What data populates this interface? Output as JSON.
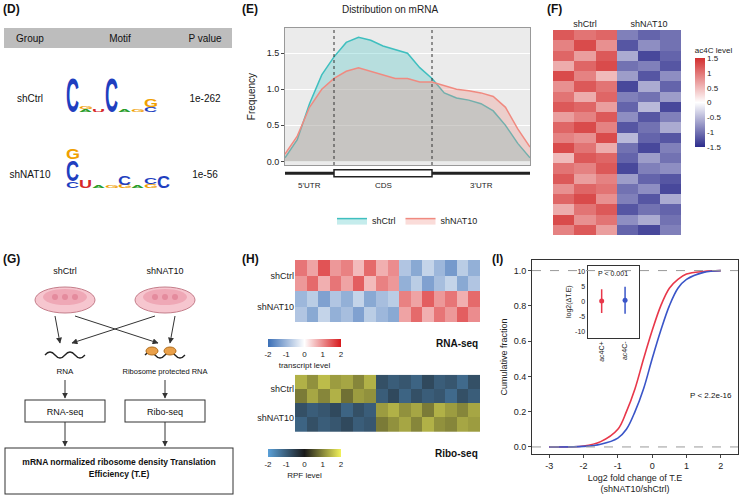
{
  "panels": {
    "D": "(D)",
    "E": "(E)",
    "F": "(F)",
    "G": "(G)",
    "H": "(H)",
    "I": "(I)"
  },
  "motif_table": {
    "header": [
      "Group",
      "Motif",
      "P value"
    ],
    "rows": [
      {
        "group": "shCtrl",
        "p_value": "1e-262",
        "motif": [
          [
            {
              "letter": "C",
              "bits": 1.6
            }
          ],
          [
            {
              "letter": "A",
              "bits": 0.12
            },
            {
              "letter": "G",
              "bits": 0.1
            }
          ],
          [
            {
              "letter": "U",
              "bits": 0.1
            }
          ],
          [
            {
              "letter": "C",
              "bits": 1.6
            }
          ],
          [
            {
              "letter": "A",
              "bits": 0.1
            }
          ],
          [
            {
              "letter": "G",
              "bits": 0.12
            }
          ],
          [
            {
              "letter": "C",
              "bits": 0.25
            },
            {
              "letter": "G",
              "bits": 0.35
            }
          ]
        ]
      },
      {
        "group": "shNAT10",
        "p_value": "1e-56",
        "motif": [
          [
            {
              "letter": "C",
              "bits": 0.3
            },
            {
              "letter": "C",
              "bits": 1.0
            },
            {
              "letter": "G",
              "bits": 0.5
            }
          ],
          [
            {
              "letter": "U",
              "bits": 0.35
            }
          ],
          [
            {
              "letter": "A",
              "bits": 0.1
            }
          ],
          [
            {
              "letter": "G",
              "bits": 0.12
            }
          ],
          [
            {
              "letter": "G",
              "bits": 0.15
            },
            {
              "letter": "C",
              "bits": 0.45
            }
          ],
          [
            {
              "letter": "A",
              "bits": 0.1
            }
          ],
          [
            {
              "letter": "G",
              "bits": 0.2
            },
            {
              "letter": "C",
              "bits": 0.3
            }
          ],
          [
            {
              "letter": "C",
              "bits": 0.55
            }
          ]
        ]
      }
    ]
  },
  "diagram": {
    "groups": [
      "shCtrl",
      "shNAT10"
    ],
    "rna": "RNA",
    "rpf": "Ribosome protected RNA",
    "assays": [
      "RNA-seq",
      "Ribo-seq"
    ],
    "result": "mRNA normalized ribosome density Translation Efficiency (T.E)"
  },
  "chart_data": [
    {
      "type": "area",
      "title": "Distribution on mRNA",
      "ylabel": "Frequency",
      "x": [
        0,
        0.05,
        0.1,
        0.15,
        0.2,
        0.25,
        0.3,
        0.35,
        0.4,
        0.45,
        0.5,
        0.55,
        0.6,
        0.65,
        0.7,
        0.75,
        0.8,
        0.85,
        0.9,
        0.95,
        1
      ],
      "series": [
        {
          "name": "shCtrl",
          "color": "#3fbfbf",
          "values": [
            0.05,
            0.3,
            0.8,
            1.2,
            1.45,
            1.65,
            1.72,
            1.68,
            1.6,
            1.55,
            1.5,
            1.3,
            1.15,
            0.95,
            0.88,
            0.85,
            0.8,
            0.7,
            0.5,
            0.25,
            0.05
          ]
        },
        {
          "name": "shNAT10",
          "color": "#f08a80",
          "values": [
            0.1,
            0.35,
            0.75,
            1.0,
            1.15,
            1.25,
            1.3,
            1.25,
            1.2,
            1.15,
            1.15,
            1.1,
            1.1,
            1.05,
            1.0,
            0.98,
            0.95,
            0.9,
            0.75,
            0.45,
            0.2
          ]
        }
      ],
      "xlim": [
        0,
        1
      ],
      "ylim": [
        -0.05,
        1.85
      ],
      "yticks": [
        {
          "value": 0,
          "label": "0.0"
        },
        {
          "value": 0.5,
          "label": "0.5"
        },
        {
          "value": 1,
          "label": "1.0"
        },
        {
          "value": 1.5,
          "label": "1.5"
        }
      ],
      "regions": [
        {
          "label": "5'UTR",
          "from": 0,
          "to": 0.2
        },
        {
          "label": "CDS",
          "from": 0.2,
          "to": 0.6
        },
        {
          "label": "3'UTR",
          "from": 0.6,
          "to": 1
        }
      ],
      "tick_labels": "y",
      "grid": true,
      "legend": "bottom"
    },
    {
      "type": "heatmap",
      "columns": [
        "shCtrl",
        "shCtrl",
        "shCtrl",
        "shNAT10",
        "shNAT10",
        "shNAT10"
      ],
      "cells": [
        [
          1.2,
          1.0,
          1.1,
          -0.9,
          -1.1,
          -1.0
        ],
        [
          0.9,
          1.3,
          0.8,
          -1.2,
          -0.8,
          -1.0
        ],
        [
          1.1,
          0.7,
          1.2,
          -0.6,
          -1.3,
          -1.1
        ],
        [
          0.6,
          1.1,
          1.3,
          -1.0,
          -0.9,
          -1.2
        ],
        [
          1.3,
          0.9,
          0.5,
          -0.7,
          -1.2,
          -0.8
        ],
        [
          0.8,
          1.2,
          1.0,
          -1.3,
          -0.6,
          -1.1
        ],
        [
          1.0,
          0.6,
          1.1,
          -0.9,
          -1.0,
          -0.7
        ],
        [
          1.2,
          1.1,
          0.7,
          -1.1,
          -0.5,
          -1.3
        ],
        [
          0.7,
          0.9,
          1.2,
          -0.8,
          -1.2,
          -0.9
        ],
        [
          1.1,
          1.3,
          0.9,
          -1.2,
          -1.0,
          -0.6
        ],
        [
          0.9,
          0.8,
          1.3,
          -0.5,
          -1.1,
          -1.2
        ],
        [
          1.3,
          1.0,
          0.6,
          -1.0,
          -1.3,
          -0.9
        ],
        [
          0.5,
          1.2,
          1.1,
          -1.1,
          -0.7,
          -1.0
        ],
        [
          1.0,
          0.9,
          1.2,
          -1.3,
          -0.9,
          -0.8
        ],
        [
          1.2,
          0.7,
          0.9,
          -0.7,
          -1.1,
          -1.2
        ],
        [
          0.8,
          1.1,
          1.0,
          -1.0,
          -0.8,
          -1.3
        ],
        [
          1.1,
          1.3,
          0.8,
          -0.9,
          -1.2,
          -0.6
        ],
        [
          0.6,
          1.0,
          1.2,
          -1.2,
          -1.0,
          -1.1
        ],
        [
          1.3,
          0.8,
          1.0,
          -0.8,
          -0.6,
          -1.0
        ],
        [
          0.9,
          1.2,
          0.7,
          -1.1,
          -1.3,
          -0.9
        ]
      ],
      "zlim": [
        -1.5,
        1.5
      ],
      "zticks": [
        -1.5,
        -1,
        -0.5,
        0,
        0.5,
        1,
        1.5
      ],
      "colorbar_title": "ac4C level",
      "colors": [
        "#2c2c8c",
        "#ffffff",
        "#d32f2f"
      ],
      "tick_labels": "x"
    },
    {
      "type": "heatmap",
      "title": "RNA-seq",
      "rows": [
        "shCtrl",
        "shCtrl",
        "shNAT10",
        "shNAT10"
      ],
      "cells": [
        [
          1.2,
          0.8,
          1.5,
          0.9,
          1.1,
          0.6,
          1.3,
          0.7,
          1.0,
          -0.8,
          -1.2,
          -0.6,
          -1.0,
          -1.4,
          -0.7,
          -1.1
        ],
        [
          0.9,
          1.3,
          0.7,
          1.2,
          0.8,
          1.4,
          0.6,
          1.1,
          0.9,
          -1.1,
          -0.7,
          -1.3,
          -0.9,
          -0.6,
          -1.2,
          -0.8
        ],
        [
          -1.0,
          -0.7,
          -1.3,
          -0.8,
          -1.1,
          -0.6,
          -1.2,
          -0.9,
          -0.7,
          1.1,
          0.8,
          1.4,
          0.9,
          1.2,
          0.7,
          1.3
        ],
        [
          -0.8,
          -1.2,
          -0.6,
          -1.1,
          -0.9,
          -1.3,
          -0.7,
          -1.0,
          -1.2,
          0.8,
          1.3,
          0.7,
          1.2,
          0.9,
          1.4,
          1.0
        ]
      ],
      "zlim": [
        -2,
        2
      ],
      "zticks": [
        -2,
        -1,
        0,
        1,
        2
      ],
      "colorbar_title": "transcript level",
      "colors": [
        "#3b6fb6",
        "#ffffff",
        "#d7191c"
      ],
      "tick_labels": "y"
    },
    {
      "type": "heatmap",
      "title": "Ribo-seq",
      "rows": [
        "shCtrl",
        "shCtrl",
        "shNAT10",
        "shNAT10"
      ],
      "cells": [
        [
          1.4,
          1.1,
          1.5,
          1.2,
          1.3,
          1.0,
          1.4,
          -0.8,
          -1.0,
          -0.9,
          -1.1,
          -0.7,
          -1.0,
          -0.9,
          -1.2,
          -0.8
        ],
        [
          0.9,
          1.3,
          1.0,
          1.4,
          0.8,
          1.2,
          1.1,
          -1.0,
          -0.7,
          -1.1,
          -0.8,
          -1.0,
          -0.9,
          -1.2,
          -0.8,
          -1.0
        ],
        [
          -0.8,
          -1.0,
          -0.9,
          -0.7,
          -1.1,
          -0.8,
          -1.0,
          1.2,
          1.4,
          1.1,
          1.3,
          0.9,
          1.4,
          1.2,
          1.0,
          1.3
        ],
        [
          -1.1,
          -0.8,
          -1.0,
          -0.9,
          -0.7,
          -1.0,
          -0.9,
          0.9,
          1.1,
          1.3,
          1.0,
          1.4,
          1.1,
          1.0,
          1.3,
          1.2
        ]
      ],
      "zlim": [
        -2,
        2
      ],
      "zticks": [
        -2,
        -1,
        0,
        1,
        2
      ],
      "colorbar_title": "RPF level",
      "colors": [
        "#5aa0d8",
        "#1a1a1a",
        "#f2f25a"
      ],
      "tick_labels": "y"
    },
    {
      "type": "line",
      "xlabel": [
        "Log2 fold change of T.E",
        "(shNAT10/shCtrl)"
      ],
      "ylabel": "Cumulative fraction",
      "x": [
        -3,
        -2,
        -1.5,
        -1,
        -0.75,
        -0.5,
        -0.25,
        0,
        0.25,
        0.5,
        0.75,
        1,
        1.5,
        2
      ],
      "series": [
        {
          "name": "ac4C+",
          "color": "#e8374a",
          "values": [
            0,
            0.005,
            0.03,
            0.1,
            0.2,
            0.33,
            0.5,
            0.66,
            0.8,
            0.9,
            0.95,
            0.98,
            0.995,
            1
          ]
        },
        {
          "name": "ac4C-",
          "color": "#3a55c8",
          "values": [
            0,
            0.003,
            0.015,
            0.05,
            0.1,
            0.2,
            0.33,
            0.5,
            0.66,
            0.8,
            0.9,
            0.95,
            0.99,
            1
          ]
        }
      ],
      "xlim": [
        -3.5,
        2.5
      ],
      "xticks": [
        -3,
        -2,
        -1,
        0,
        1,
        2
      ],
      "ylim": [
        -0.04,
        1.06
      ],
      "yticks": [
        {
          "value": 0,
          "label": "0.0"
        },
        {
          "value": 0.2,
          "label": "0.2"
        },
        {
          "value": 0.4,
          "label": "0.4"
        },
        {
          "value": 0.6,
          "label": "0.6"
        },
        {
          "value": 0.8,
          "label": "0.8"
        },
        {
          "value": 1,
          "label": "1.0"
        }
      ],
      "reference_lines": [
        0,
        1
      ],
      "annotation": "P < 2.2e-16"
    },
    {
      "type": "point",
      "categories": [
        "ac4C+",
        "ac4C-"
      ],
      "values": [
        0.2,
        0.5
      ],
      "errors": [
        4,
        4.5
      ],
      "colors": [
        "#e8374a",
        "#3a55c8"
      ],
      "ylabel": "log2(ΔT.E)",
      "ylim": [
        -12,
        12
      ],
      "yticks": [
        -10,
        -5,
        0,
        5,
        10
      ],
      "annotation": "P < 0.001"
    }
  ]
}
